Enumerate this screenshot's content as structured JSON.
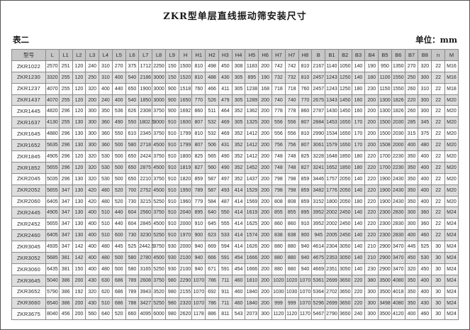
{
  "page": {
    "title": "ZKR型单层直线振动筛安装尺寸",
    "table_label": "表二",
    "unit_label": "单位：mm"
  },
  "colors": {
    "header_bg": "#c6c6c6",
    "row_alt_bg": "#dedede",
    "border": "#8a8a8a"
  },
  "table": {
    "model_header": "型号",
    "headers": [
      "L",
      "L1",
      "L2",
      "L3",
      "L4",
      "L5",
      "L6",
      "L7",
      "L8",
      "L9",
      "H",
      "H1",
      "H2",
      "H3",
      "H4",
      "H5",
      "H6",
      "H7",
      "H7",
      "H8",
      "B",
      "B1",
      "B2",
      "B3",
      "B4",
      "B5",
      "B6",
      "B7",
      "B8",
      "n",
      "M"
    ],
    "rows": [
      {
        "model": "ZKR1022",
        "values": [
          "2570",
          "251",
          "120",
          "240",
          "310",
          "270",
          "375",
          "1712",
          "2250",
          "150",
          "1500",
          "810",
          "498",
          "450",
          "308",
          "1183",
          "200",
          "742",
          "742",
          "810",
          "2167",
          "1140",
          "1050",
          "140",
          "190",
          "950",
          "1350",
          "270",
          "320",
          "22",
          "M16"
        ]
      },
      {
        "model": "ZKR1230",
        "values": [
          "3320",
          "255",
          "120",
          "250",
          "310",
          "400",
          "540",
          "2186",
          "3000",
          "150",
          "1520",
          "810",
          "488",
          "430",
          "305",
          "895",
          "190",
          "732",
          "732",
          "810",
          "2457",
          "1243",
          "1250",
          "140",
          "180",
          "1100",
          "1550",
          "250",
          "300",
          "22",
          "M16"
        ]
      },
      {
        "model": "ZKR1237",
        "values": [
          "4070",
          "255",
          "120",
          "320",
          "400",
          "440",
          "650",
          "1900",
          "3000",
          "900",
          "1518",
          "760",
          "466",
          "411",
          "305",
          "1238",
          "168",
          "718",
          "718",
          "760",
          "2457",
          "1243",
          "1250",
          "180",
          "230",
          "1150",
          "1550",
          "260",
          "310",
          "22",
          "M18"
        ]
      },
      {
        "model": "ZKR1437",
        "values": [
          "4070",
          "255",
          "120",
          "200",
          "240",
          "400",
          "540",
          "1850",
          "3000",
          "900",
          "1650",
          "770",
          "526",
          "479",
          "305",
          "1289",
          "200",
          "740",
          "740",
          "770",
          "2675",
          "1343",
          "1450",
          "160",
          "200",
          "1300",
          "1826",
          "220",
          "300",
          "22",
          "M20"
        ]
      },
      {
        "model": "ZKR1445",
        "values": [
          "4820",
          "296",
          "120",
          "300",
          "350",
          "536",
          "626",
          "2308",
          "3750",
          "900",
          "1692",
          "860",
          "511",
          "464",
          "352",
          "1362",
          "200",
          "778",
          "778",
          "860",
          "2787",
          "1430",
          "1450",
          "160",
          "200",
          "1300",
          "1826",
          "260",
          "300",
          "22",
          "M20"
        ]
      },
      {
        "model": "ZKR1637",
        "values": [
          "4130",
          "255",
          "130",
          "300",
          "360",
          "490",
          "550",
          "1802.5",
          "3000",
          "910",
          "1600",
          "807",
          "532",
          "469",
          "305",
          "1325",
          "200",
          "556",
          "556",
          "807",
          "2884",
          "1453",
          "1650",
          "170",
          "200",
          "1500",
          "2030",
          "285",
          "345",
          "22",
          "M20"
        ]
      },
      {
        "model": "ZKR1645",
        "values": [
          "4880",
          "296",
          "130",
          "300",
          "360",
          "550",
          "610",
          "2345",
          "3750",
          "910",
          "1799",
          "810",
          "532",
          "469",
          "352",
          "1412",
          "200",
          "556",
          "556",
          "810",
          "2990",
          "1534",
          "1650",
          "170",
          "200",
          "1500",
          "2030",
          "315",
          "375",
          "22",
          "M20"
        ]
      },
      {
        "model": "ZKR1652",
        "values": [
          "5635",
          "296",
          "130",
          "300",
          "360",
          "500",
          "580",
          "2718",
          "4500",
          "910",
          "1799",
          "807",
          "506",
          "431",
          "352",
          "1412",
          "200",
          "756",
          "756",
          "807",
          "3061",
          "1579",
          "1650",
          "170",
          "200",
          "1508",
          "2000",
          "400",
          "480",
          "22",
          "M20"
        ]
      },
      {
        "model": "ZKR1845",
        "values": [
          "4905",
          "296",
          "120",
          "320",
          "530",
          "500",
          "650",
          "2424",
          "3750",
          "910",
          "1800",
          "825",
          "565",
          "490",
          "352",
          "1412",
          "200",
          "748",
          "748",
          "825",
          "3228",
          "1648",
          "1850",
          "180",
          "220",
          "1700",
          "2230",
          "350",
          "400",
          "22",
          "M20"
        ]
      },
      {
        "model": "ZKR1852",
        "values": [
          "5655",
          "296",
          "120",
          "320",
          "530",
          "500",
          "650",
          "2875",
          "4500",
          "910",
          "1819",
          "827",
          "560",
          "490",
          "352",
          "1452",
          "200",
          "748",
          "748",
          "827",
          "3241",
          "1652",
          "1850",
          "180",
          "220",
          "1700",
          "2230",
          "350",
          "400",
          "22",
          "M20"
        ]
      },
      {
        "model": "ZKR2045",
        "values": [
          "5035",
          "296",
          "130",
          "320",
          "530",
          "500",
          "650",
          "2210",
          "3750",
          "910",
          "1820",
          "859",
          "587",
          "497",
          "352",
          "1437",
          "200",
          "798",
          "798",
          "859",
          "3446",
          "1757",
          "2050",
          "140",
          "220",
          "1900",
          "2430",
          "350",
          "400",
          "22",
          "M20"
        ]
      },
      {
        "model": "ZKR2052",
        "values": [
          "5655",
          "347",
          "130",
          "420",
          "480",
          "520",
          "700",
          "2752",
          "4500",
          "910",
          "1950",
          "789",
          "587",
          "493",
          "414",
          "1529",
          "200",
          "798",
          "798",
          "859",
          "3482",
          "1776",
          "2050",
          "140",
          "220",
          "1900",
          "2430",
          "350",
          "400",
          "22",
          "M20"
        ]
      },
      {
        "model": "ZKR2060",
        "values": [
          "6405",
          "347",
          "130",
          "420",
          "480",
          "520",
          "730",
          "3215",
          "5250",
          "910",
          "1960",
          "779",
          "584",
          "487",
          "414",
          "1569",
          "200",
          "808",
          "808",
          "859",
          "3152",
          "1800",
          "2050",
          "180",
          "220",
          "1900",
          "2430",
          "350",
          "400",
          "22",
          "M20"
        ]
      },
      {
        "model": "ZKR2445",
        "values": [
          "4905",
          "347",
          "130",
          "400",
          "510",
          "440",
          "604",
          "2560",
          "3750",
          "910",
          "2040",
          "895",
          "640",
          "550",
          "414",
          "1619",
          "200",
          "855",
          "855",
          "895",
          "3952",
          "2002",
          "2450",
          "140",
          "220",
          "2300",
          "2830",
          "300",
          "360",
          "22",
          "M24"
        ]
      },
      {
        "model": "ZKR2452",
        "values": [
          "5655",
          "347",
          "130",
          "400",
          "510",
          "440",
          "604",
          "2845",
          "4500",
          "910",
          "2000",
          "910",
          "645",
          "555",
          "414",
          "1625",
          "200",
          "860",
          "860",
          "910",
          "3952",
          "2002",
          "2450",
          "140",
          "220",
          "2300",
          "2830",
          "300",
          "360",
          "22",
          "M24"
        ]
      },
      {
        "model": "ZKR2460",
        "values": [
          "6405",
          "347",
          "130",
          "400",
          "510",
          "600",
          "730",
          "3230",
          "5250",
          "910",
          "1970",
          "900",
          "623",
          "533",
          "414",
          "1574",
          "200",
          "838",
          "838",
          "900",
          "945",
          "2005",
          "2450",
          "140",
          "220",
          "2300",
          "2830",
          "400",
          "460",
          "22",
          "M24"
        ]
      },
      {
        "model": "ZKR3045",
        "values": [
          "4935",
          "347",
          "142",
          "400",
          "480",
          "445",
          "525",
          "2442.5",
          "3750",
          "930",
          "2000",
          "940",
          "669",
          "594",
          "414",
          "1626",
          "200",
          "880",
          "880",
          "940",
          "4614",
          "2304",
          "3050",
          "140",
          "210",
          "2900",
          "3470",
          "445",
          "525",
          "30",
          "M24"
        ]
      },
      {
        "model": "ZKR3052",
        "values": [
          "5685",
          "381",
          "142",
          "400",
          "480",
          "500",
          "580",
          "2780",
          "4500",
          "930",
          "2100",
          "940",
          "666",
          "591",
          "454",
          "1666",
          "200",
          "880",
          "880",
          "940",
          "4675",
          "2353",
          "3050",
          "140",
          "210",
          "2900",
          "3470",
          "450",
          "530",
          "30",
          "M24"
        ]
      },
      {
        "model": "ZKR3060",
        "values": [
          "6435",
          "381",
          "150",
          "400",
          "480",
          "500",
          "580",
          "3165",
          "5250",
          "930",
          "2100",
          "940",
          "671",
          "591",
          "454",
          "1666",
          "200",
          "880",
          "880",
          "940",
          "4669",
          "2351",
          "3050",
          "140",
          "230",
          "2900",
          "3470",
          "320",
          "450",
          "30",
          "M24"
        ]
      },
      {
        "model": "ZKR3645",
        "values": [
          "5040",
          "386",
          "200",
          "430",
          "630",
          "686",
          "789",
          "2608",
          "3750",
          "980",
          "2290",
          "1070",
          "786",
          "711",
          "460",
          "1810",
          "200",
          "1020",
          "1020",
          "1070",
          "5361",
          "2699",
          "3650",
          "220",
          "380",
          "3500",
          "4080",
          "350",
          "400",
          "30",
          "M24"
        ]
      },
      {
        "model": "ZKR3652",
        "values": [
          "5790",
          "386",
          "192",
          "320",
          "620",
          "686",
          "789",
          "3943",
          "3520",
          "980",
          "2155",
          "1070",
          "692",
          "911",
          "460",
          "1840",
          "200",
          "1030",
          "1030",
          "1070",
          "5364",
          "2702",
          "3650",
          "220",
          "300",
          "3500",
          "4018",
          "350",
          "400",
          "30",
          "M24"
        ]
      },
      {
        "model": "ZKR3660",
        "values": [
          "6540",
          "386",
          "200",
          "430",
          "510",
          "686",
          "788",
          "3427",
          "5250",
          "980",
          "2320",
          "1070",
          "786",
          "711",
          "460",
          "1840",
          "200",
          "999",
          "999",
          "1070",
          "5296",
          "2699",
          "3650",
          "220",
          "300",
          "3498",
          "4080",
          "350",
          "430",
          "30",
          "M24"
        ]
      },
      {
        "model": "ZKR3675",
        "values": [
          "8040",
          "456",
          "200",
          "560",
          "640",
          "520",
          "660",
          "4095",
          "6000",
          "980",
          "2620",
          "1178",
          "886",
          "811",
          "543",
          "2073",
          "300",
          "1120",
          "1120",
          "1170",
          "5467",
          "2790",
          "3650",
          "240",
          "300",
          "3500",
          "4120",
          "400",
          "460",
          "30",
          "M24"
        ]
      }
    ]
  }
}
